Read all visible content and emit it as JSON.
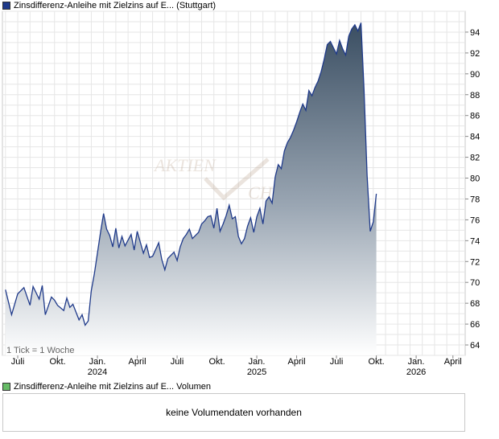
{
  "legend": {
    "instrument": "Zinsdifferenz-Anleihe mit Zielzins auf E...",
    "exchange": "(Stuttgart)",
    "volume_label": "Volumen",
    "price_color": "#1f3a8a",
    "volume_color": "#66bb66"
  },
  "tick_note": "1 Tick = 1 Woche",
  "watermark": {
    "line1": "AKTIEN",
    "line2": "CHECK"
  },
  "volume": {
    "empty_message": "keine Volumendaten vorhanden"
  },
  "chart_data": {
    "type": "area",
    "title": "",
    "xlabel": "",
    "ylabel": "",
    "ylim": [
      63,
      96
    ],
    "grid": true,
    "y_ticks": [
      64,
      66,
      68,
      70,
      72,
      74,
      76,
      78,
      80,
      82,
      84,
      86,
      88,
      90,
      92,
      94
    ],
    "x_ticks": [
      {
        "label": "Juli",
        "year": "",
        "week": 4
      },
      {
        "label": "Okt.",
        "year": "",
        "week": 17
      },
      {
        "label": "Jan.",
        "year": "2024",
        "week": 30
      },
      {
        "label": "April",
        "year": "",
        "week": 43
      },
      {
        "label": "Juli",
        "year": "",
        "week": 56
      },
      {
        "label": "Okt.",
        "year": "",
        "week": 69
      },
      {
        "label": "Jan.",
        "year": "2025",
        "week": 82
      },
      {
        "label": "April",
        "year": "",
        "week": 95
      },
      {
        "label": "Juli",
        "year": "",
        "week": 108
      },
      {
        "label": "Okt.",
        "year": "",
        "week": 121
      },
      {
        "label": "Jan.",
        "year": "2026",
        "week": 134
      },
      {
        "label": "April",
        "year": "",
        "week": 146
      }
    ],
    "series": [
      {
        "values": [
          69.3,
          66.9,
          68.9,
          69.5,
          67.8,
          69.6,
          68.4,
          69.7,
          66.9,
          68.6,
          68.3,
          67.8,
          67.3,
          68.5,
          67.6,
          67.9,
          66.4,
          66.9,
          65.9,
          66.3,
          69.2,
          70.8,
          74.8,
          76.6,
          75.1,
          74.5,
          73.4,
          75.2,
          73.3,
          74.4,
          73.5,
          74.6,
          73.1,
          74.9,
          72.8,
          73.6,
          72.4,
          72.5,
          73.8,
          72.2,
          71.2,
          72.3,
          72.9,
          72.1,
          73.4,
          74.2,
          74.6,
          75.1,
          74.2,
          74.5,
          74.8,
          75.6,
          75.9,
          76.3,
          76.4,
          75.2,
          77.1,
          74.9,
          75.6,
          76.4,
          77.4,
          76.1,
          76.3,
          74.4,
          73.7,
          74.2,
          75.4,
          76.2,
          74.8,
          76.3,
          77.1,
          75.6,
          77.8,
          78.2,
          77.6,
          80.1,
          81.3,
          80.9,
          82.6,
          83.4,
          83.9,
          84.6,
          85.4,
          86.3,
          87.1,
          86.5,
          88.4,
          87.9,
          88.7,
          89.3,
          90.2,
          91.4,
          92.8,
          93.1,
          92.5,
          91.9,
          93.2,
          92.4,
          91.8,
          93.6,
          94.3,
          94.7,
          94.1,
          94.9,
          88.5,
          80.3,
          74.9,
          75.8,
          78.5
        ],
        "weeks": [
          0,
          2,
          4,
          6,
          8,
          9,
          11,
          12,
          13,
          15,
          16,
          17,
          19,
          20,
          21,
          22,
          24,
          25,
          26,
          27,
          28,
          29,
          31,
          32,
          33,
          34,
          35,
          36,
          37,
          38,
          39,
          41,
          42,
          43,
          45,
          46,
          47,
          48,
          50,
          51,
          52,
          53,
          55,
          56,
          57,
          58,
          59,
          60,
          61,
          62,
          63,
          64,
          65,
          66,
          67,
          68,
          69,
          70,
          71,
          72,
          73,
          74,
          75,
          76,
          77,
          78,
          79,
          80,
          81,
          82,
          83,
          84,
          85,
          86,
          87,
          88,
          89,
          90,
          91,
          92,
          93,
          94,
          95,
          96,
          97,
          98,
          99,
          100,
          101,
          102,
          103,
          104,
          105,
          106,
          107,
          108,
          109,
          110,
          111,
          112,
          113,
          114,
          115,
          116,
          117,
          118,
          119,
          120,
          121
        ]
      }
    ]
  }
}
